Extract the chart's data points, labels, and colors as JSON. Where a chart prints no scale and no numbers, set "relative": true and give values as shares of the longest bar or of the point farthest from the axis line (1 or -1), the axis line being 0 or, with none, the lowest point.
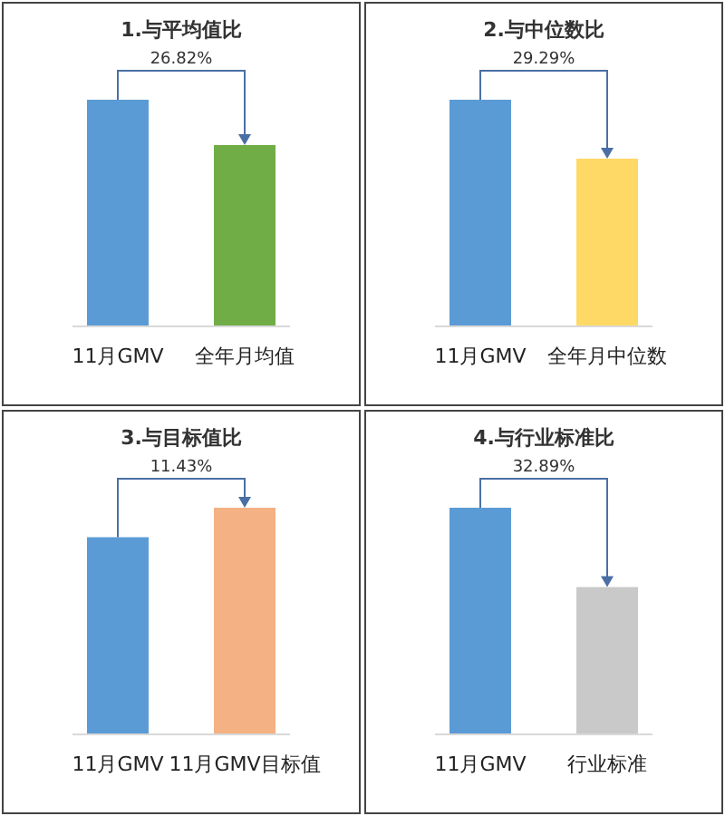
{
  "chart_data": [
    {
      "type": "bar",
      "title": "1.与平均值比",
      "categories": [
        "11月GMV",
        "全年月均值"
      ],
      "values": [
        1,
        0.8
      ],
      "colors": [
        "#5b9bd5",
        "#70ad47"
      ],
      "relative": true,
      "annotations": [
        "26.82%"
      ]
    },
    {
      "type": "bar",
      "title": "2.与中位数比",
      "categories": [
        "11月GMV",
        "全年月中位数"
      ],
      "values": [
        1,
        0.74
      ],
      "colors": [
        "#5b9bd5",
        "#ffd966"
      ],
      "relative": true,
      "annotations": [
        "29.29%"
      ]
    },
    {
      "type": "bar",
      "title": "3.与目标值比",
      "categories": [
        "11月GMV",
        "11月GMV目标值"
      ],
      "values": [
        0.87,
        1
      ],
      "colors": [
        "#5b9bd5",
        "#f4b183"
      ],
      "relative": true,
      "annotations": [
        "11.43%"
      ]
    },
    {
      "type": "bar",
      "title": "4.与行业标准比",
      "categories": [
        "11月GMV",
        "行业标准"
      ],
      "values": [
        1,
        0.65
      ],
      "colors": [
        "#5b9bd5",
        "#c9c9c9"
      ],
      "relative": true,
      "annotations": [
        "32.89%"
      ]
    }
  ]
}
